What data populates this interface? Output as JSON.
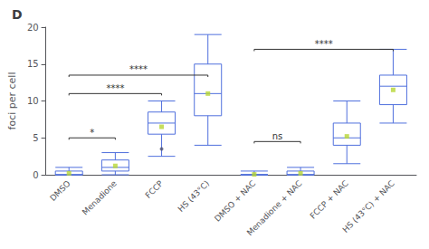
{
  "chart_data": {
    "type": "box",
    "title": "D",
    "ylabel": "foci per cell",
    "categories": [
      "DMSO",
      "Menadione",
      "FCCP",
      "HS (43°C)",
      "DMSO + NAC",
      "Menadione + NAC",
      "FCCP + NAC",
      "HS (43°C) + NAC"
    ],
    "boxes": [
      {
        "q1": 0,
        "median": 0,
        "q3": 0.5,
        "whislo": 0,
        "whishi": 1.0,
        "mean": 0.2,
        "fliers": []
      },
      {
        "q1": 0.5,
        "median": 1,
        "q3": 2.0,
        "whislo": 0,
        "whishi": 3.0,
        "mean": 1.2,
        "fliers": []
      },
      {
        "q1": 5.5,
        "median": 7,
        "q3": 8.5,
        "whislo": 2.5,
        "whishi": 10.0,
        "mean": 6.5,
        "fliers": [
          3.5
        ]
      },
      {
        "q1": 8,
        "median": 11,
        "q3": 15,
        "whislo": 4,
        "whishi": 19,
        "mean": 11,
        "fliers": []
      },
      {
        "q1": 0,
        "median": 0,
        "q3": 0,
        "whislo": 0,
        "whishi": 0.5,
        "mean": 0.05,
        "fliers": []
      },
      {
        "q1": 0,
        "median": 0,
        "q3": 0.5,
        "whislo": 0,
        "whishi": 1.0,
        "mean": 0.2,
        "fliers": []
      },
      {
        "q1": 4,
        "median": 5,
        "q3": 7,
        "whislo": 1.5,
        "whishi": 10,
        "mean": 5.2,
        "fliers": []
      },
      {
        "q1": 9.5,
        "median": 12,
        "q3": 13.5,
        "whislo": 7,
        "whishi": 17,
        "mean": 11.5,
        "fliers": []
      }
    ],
    "annotations": [
      {
        "from": "DMSO",
        "to": "Menadione",
        "y": 5.0,
        "label": "*"
      },
      {
        "from": "DMSO",
        "to": "FCCP",
        "y": 11.0,
        "label": "****"
      },
      {
        "from": "DMSO",
        "to": "HS (43°C)",
        "y": 13.5,
        "label": "****"
      },
      {
        "from": "DMSO + NAC",
        "to": "Menadione + NAC",
        "y": 4.5,
        "label": "ns"
      },
      {
        "from": "DMSO + NAC",
        "to": "HS (43°C) + NAC",
        "y": 17.0,
        "label": "****"
      }
    ],
    "ylim": [
      0,
      20
    ],
    "yticks": [
      0,
      5,
      10,
      15,
      20
    ],
    "grid": false
  }
}
